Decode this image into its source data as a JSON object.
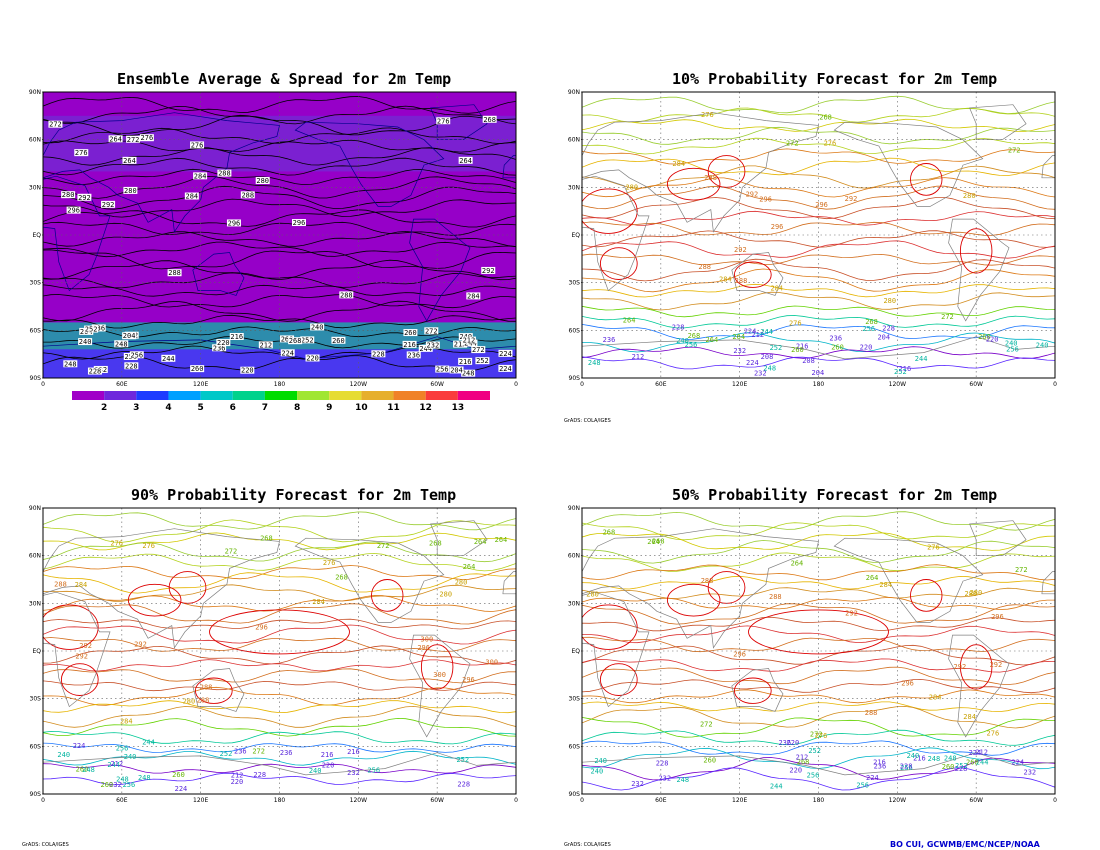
{
  "panels": [
    {
      "id": "ensemble",
      "title": "Ensemble Average & Spread for 2m Temp",
      "credit": ""
    },
    {
      "id": "p10",
      "title": "10% Probability Forecast for 2m Temp",
      "credit": "GrADS: COLA/IGES"
    },
    {
      "id": "p90",
      "title": "90% Probability Forecast for 2m Temp",
      "credit": "GrADS: COLA/IGES"
    },
    {
      "id": "p50",
      "title": "50% Probability Forecast for 2m Temp",
      "credit": "GrADS: COLA/IGES"
    }
  ],
  "lat_ticks": [
    "90N",
    "60N",
    "30N",
    "EQ",
    "30S",
    "60S",
    "90S"
  ],
  "lon_ticks": [
    "0",
    "60E",
    "120E",
    "180",
    "120W",
    "60W",
    "0"
  ],
  "colorbar": {
    "labels": [
      "2",
      "3",
      "4",
      "5",
      "6",
      "7",
      "8",
      "9",
      "10",
      "11",
      "12",
      "13"
    ],
    "colors": [
      "#a000c8",
      "#6e28dc",
      "#1e3cff",
      "#00a0ff",
      "#00c8c8",
      "#00d28c",
      "#00dc00",
      "#a0e632",
      "#e6dc32",
      "#e6af2d",
      "#f08228",
      "#fa3c3c",
      "#f00082"
    ]
  },
  "map_colors": {
    "ensemble_bg": "#9600c8",
    "land": "#808080",
    "grid": "#606060",
    "contour": "#000000"
  },
  "attribution": "BO CUI, GCWMB/EMC/NCEP/NOAA",
  "contour_labels": {
    "ensemble": [
      "288",
      "272",
      "276",
      "284",
      "296",
      "280",
      "264",
      "292",
      "268",
      "256",
      "248",
      "260",
      "240",
      "220",
      "224",
      "232",
      "244",
      "212",
      "236",
      "228",
      "216",
      "252",
      "204"
    ],
    "p10": [
      "272",
      "264",
      "268",
      "280",
      "292",
      "288",
      "296",
      "276",
      "284",
      "260",
      "256",
      "240",
      "248",
      "232",
      "220",
      "228",
      "212",
      "208",
      "224",
      "216",
      "252",
      "236",
      "244",
      "204"
    ],
    "p90": [
      "272",
      "268",
      "284",
      "280",
      "276",
      "296",
      "300",
      "288",
      "292",
      "264",
      "256",
      "260",
      "248",
      "240",
      "244",
      "232",
      "228",
      "224",
      "220",
      "216",
      "212",
      "236",
      "252"
    ],
    "p50": [
      "268",
      "264",
      "272",
      "284",
      "292",
      "288",
      "296",
      "276",
      "280",
      "260",
      "256",
      "248",
      "240",
      "232",
      "228",
      "224",
      "220",
      "216",
      "212",
      "236",
      "244",
      "252"
    ]
  }
}
